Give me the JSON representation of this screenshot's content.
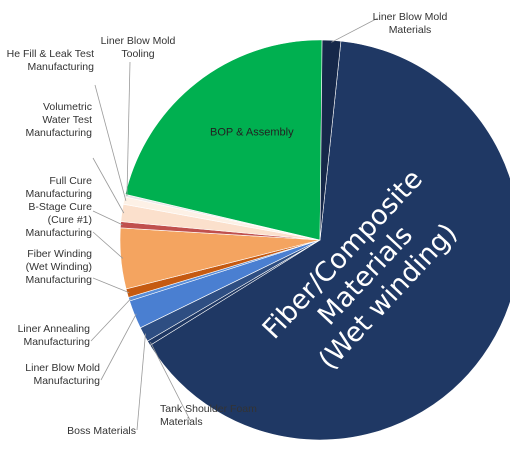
{
  "chart_data": {
    "type": "pie",
    "title": "",
    "slices": [
      {
        "label": "Fiber/Composite Materials (Wet winding)",
        "lines": [
          "Fiber/Composite",
          "Materials",
          "(Wet winding)"
        ],
        "value": 64.5,
        "color": "#1f3864"
      },
      {
        "label": "Tank Shoulder Foam Materials",
        "lines": [
          "Tank Shoulder Foam",
          "Materials"
        ],
        "value": 0.4,
        "color": "#1f3864"
      },
      {
        "label": "Boss Materials",
        "lines": [
          "Boss Materials"
        ],
        "value": 1.2,
        "color": "#2e4e82"
      },
      {
        "label": "Liner Blow Mold Manufacturing",
        "lines": [
          "Liner Blow Mold",
          "Manufacturing"
        ],
        "value": 2.3,
        "color": "#4a7fd1"
      },
      {
        "label": "Liner Annealing Manufacturing",
        "lines": [
          "Liner Annealing",
          "Manufacturing"
        ],
        "value": 0.3,
        "color": "#5a8ed8"
      },
      {
        "label": "Fiber Winding (Wet Winding) Manufacturing",
        "lines": [
          "Fiber Winding",
          "(Wet Winding)",
          "Manufacturing"
        ],
        "value": 0.7,
        "color": "#c55a11"
      },
      {
        "label": "B-Stage Cure (Cure #1) Manufacturing",
        "lines": [
          "B-Stage Cure",
          "(Cure #1)",
          "Manufacturing"
        ],
        "value": 4.9,
        "color": "#f4a460"
      },
      {
        "label": "Full Cure Manufacturing",
        "lines": [
          "Full Cure",
          "Manufacturing"
        ],
        "value": 0.5,
        "color": "#c0504d"
      },
      {
        "label": "Volumetric Water Test Manufacturing",
        "lines": [
          "Volumetric",
          "Water Test",
          "Manufacturing"
        ],
        "value": 1.4,
        "color": "#fbe0cc"
      },
      {
        "label": "He Fill & Leak Test Manufacturing",
        "lines": [
          "He Fill & Leak Test",
          "Manufacturing"
        ],
        "value": 0.6,
        "color": "#fdf1e6"
      },
      {
        "label": "Liner Blow Mold Tooling",
        "lines": [
          "Liner Blow Mold",
          "Tooling"
        ],
        "value": 0.2,
        "color": "#e8e8e8"
      },
      {
        "label": "BOP & Assembly",
        "lines": [
          "BOP & Assembly"
        ],
        "value": 21.5,
        "color": "#00b050"
      },
      {
        "label": "Liner Blow Mold Materials",
        "lines": [
          "Liner Blow Mold",
          "Materials"
        ],
        "value": 1.5,
        "color": "#16284a"
      }
    ]
  }
}
